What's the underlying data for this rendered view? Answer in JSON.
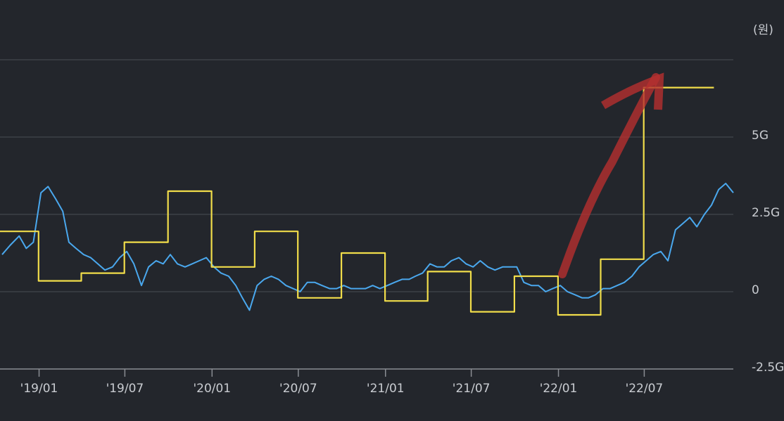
{
  "chart_data": {
    "type": "line",
    "unit": "(원)",
    "x_tick_labels": [
      "'19/01",
      "'19/07",
      "'20/01",
      "'20/07",
      "'21/01",
      "'21/07",
      "'22/01",
      "'22/07"
    ],
    "y_tick_labels": [
      "5G",
      "2.5G",
      "0",
      "-2.5G"
    ],
    "y_ticks": [
      5,
      2.5,
      0,
      -2.5
    ],
    "ylim": [
      -2.5,
      7.5
    ],
    "grid": true,
    "series": [
      {
        "color": "#4aa8ee",
        "step": false,
        "x": [
          "2018-10-15",
          "2018-11-01",
          "2018-11-20",
          "2018-12-05",
          "2018-12-20",
          "2019-01-05",
          "2019-01-20",
          "2019-02-05",
          "2019-02-20",
          "2019-03-05",
          "2019-03-20",
          "2019-04-05",
          "2019-04-20",
          "2019-05-05",
          "2019-05-20",
          "2019-06-05",
          "2019-06-20",
          "2019-07-05",
          "2019-07-20",
          "2019-08-05",
          "2019-08-20",
          "2019-09-05",
          "2019-09-20",
          "2019-10-05",
          "2019-10-20",
          "2019-11-05",
          "2019-11-20",
          "2019-12-05",
          "2019-12-20",
          "2020-01-05",
          "2020-01-20",
          "2020-02-05",
          "2020-02-20",
          "2020-03-05",
          "2020-03-20",
          "2020-04-05",
          "2020-04-20",
          "2020-05-05",
          "2020-05-20",
          "2020-06-05",
          "2020-06-20",
          "2020-07-05",
          "2020-07-20",
          "2020-08-05",
          "2020-08-20",
          "2020-09-05",
          "2020-09-20",
          "2020-10-05",
          "2020-10-20",
          "2020-11-05",
          "2020-11-20",
          "2020-12-05",
          "2020-12-20",
          "2021-01-05",
          "2021-01-20",
          "2021-02-05",
          "2021-02-20",
          "2021-03-05",
          "2021-03-20",
          "2021-04-05",
          "2021-04-20",
          "2021-05-05",
          "2021-05-20",
          "2021-06-05",
          "2021-06-20",
          "2021-07-05",
          "2021-07-20",
          "2021-08-05",
          "2021-08-20",
          "2021-09-05",
          "2021-09-20",
          "2021-10-05",
          "2021-10-20",
          "2021-11-05",
          "2021-11-20",
          "2021-12-05",
          "2021-12-20",
          "2022-01-05",
          "2022-01-20",
          "2022-02-05",
          "2022-02-20",
          "2022-03-05",
          "2022-03-20",
          "2022-04-05",
          "2022-04-20",
          "2022-05-05",
          "2022-05-20",
          "2022-06-05",
          "2022-06-20",
          "2022-07-05",
          "2022-07-20",
          "2022-08-05",
          "2022-08-20",
          "2022-09-05",
          "2022-09-20",
          "2022-10-05",
          "2022-10-20",
          "2022-11-05",
          "2022-11-20",
          "2022-12-05",
          "2022-12-20",
          "2023-01-05"
        ],
        "y": [
          1.2,
          1.5,
          1.8,
          1.4,
          1.6,
          3.2,
          3.4,
          3.0,
          2.6,
          1.6,
          1.4,
          1.2,
          1.1,
          0.9,
          0.7,
          0.8,
          1.1,
          1.3,
          0.9,
          0.2,
          0.8,
          1.0,
          0.9,
          1.2,
          0.9,
          0.8,
          0.9,
          1.0,
          1.1,
          0.8,
          0.6,
          0.5,
          0.2,
          -0.2,
          -0.6,
          0.2,
          0.4,
          0.5,
          0.4,
          0.2,
          0.1,
          0.0,
          0.3,
          0.3,
          0.2,
          0.1,
          0.1,
          0.2,
          0.1,
          0.1,
          0.1,
          0.2,
          0.1,
          0.2,
          0.3,
          0.4,
          0.4,
          0.5,
          0.6,
          0.9,
          0.8,
          0.8,
          1.0,
          1.1,
          0.9,
          0.8,
          1.0,
          0.8,
          0.7,
          0.8,
          0.8,
          0.8,
          0.3,
          0.2,
          0.2,
          0.0,
          0.1,
          0.2,
          0.0,
          -0.1,
          -0.2,
          -0.2,
          -0.1,
          0.1,
          0.1,
          0.2,
          0.3,
          0.5,
          0.8,
          1.0,
          1.2,
          1.3,
          1.0,
          2.0,
          2.2,
          2.4,
          2.1,
          2.5,
          2.8,
          3.3,
          3.5,
          3.2
        ]
      },
      {
        "color": "#f1dd4a",
        "step": true,
        "x": [
          "2018-10-01",
          "2018-12-31",
          "2019-03-31",
          "2019-06-30",
          "2019-09-30",
          "2019-12-31",
          "2020-03-31",
          "2020-06-30",
          "2020-09-30",
          "2020-12-31",
          "2021-03-31",
          "2021-06-30",
          "2021-09-30",
          "2021-12-31",
          "2022-03-31",
          "2022-06-30",
          "2022-09-30"
        ],
        "y": [
          1.95,
          0.35,
          0.6,
          1.6,
          3.25,
          0.8,
          1.95,
          -0.2,
          1.25,
          -0.3,
          0.65,
          -0.65,
          0.5,
          -0.75,
          1.05,
          6.6,
          6.6
        ]
      }
    ]
  }
}
